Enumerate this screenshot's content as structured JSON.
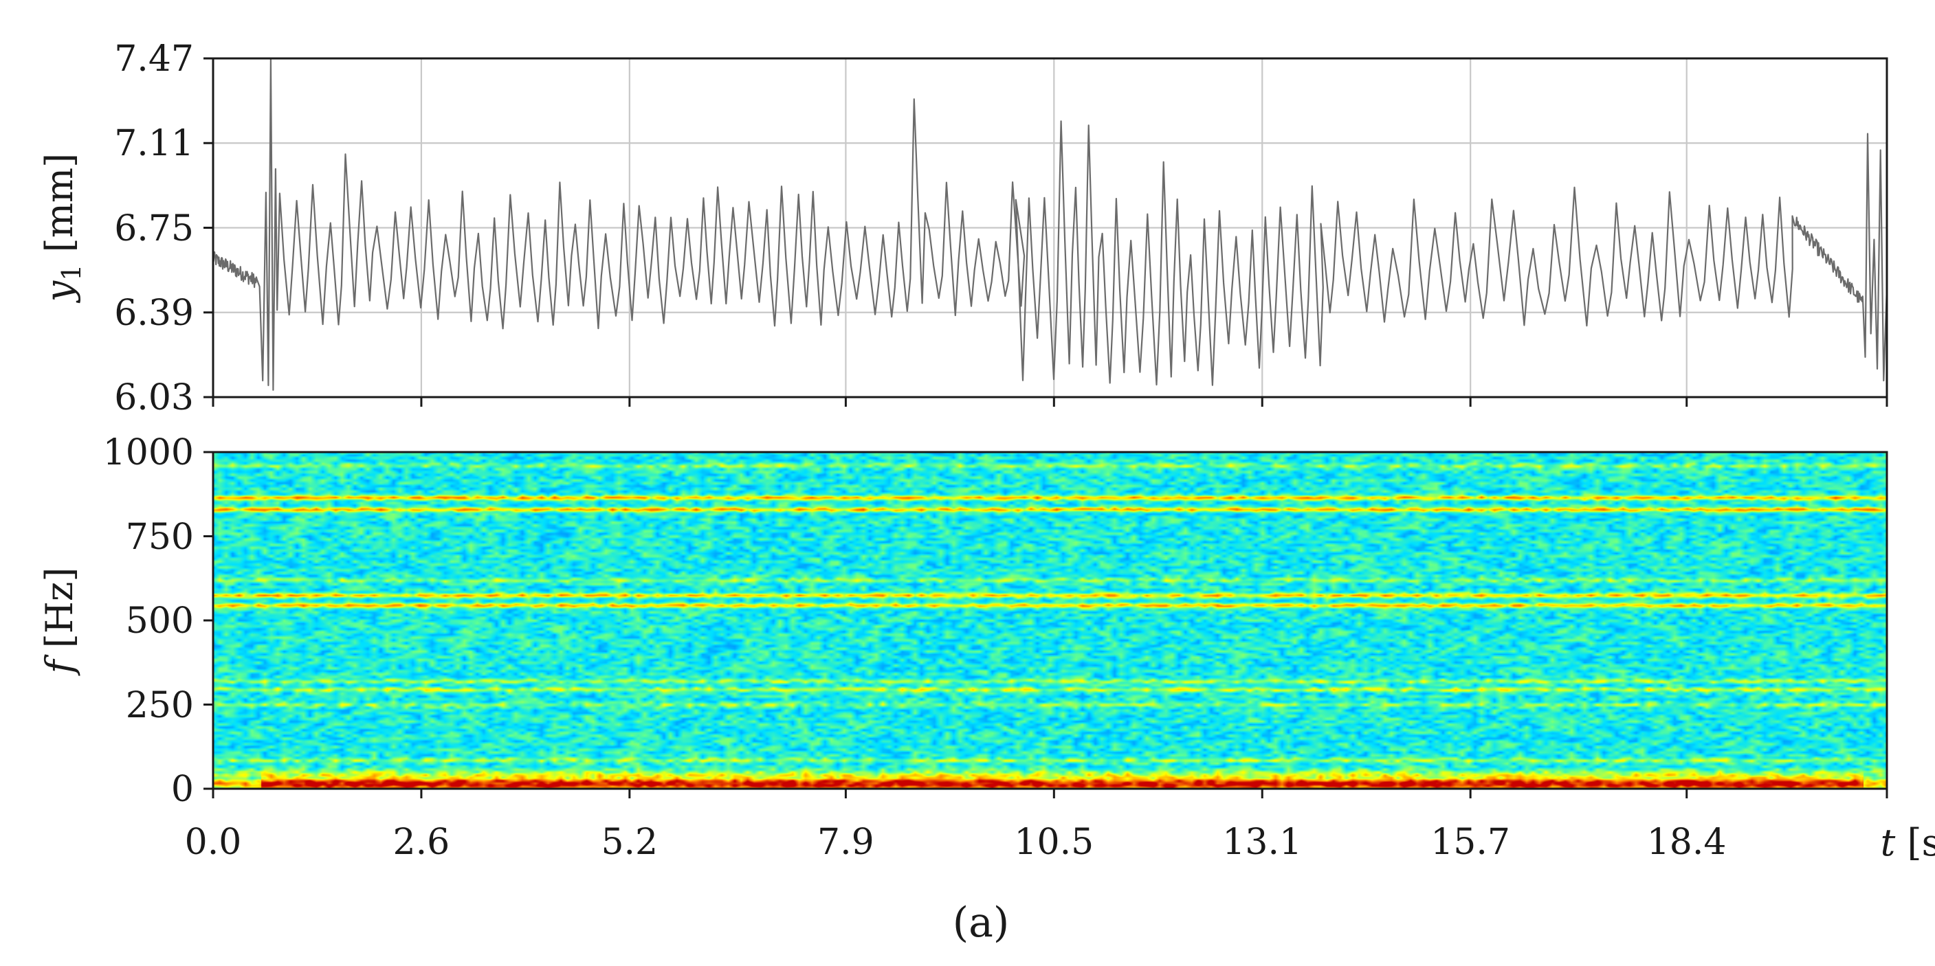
{
  "caption": "(a)",
  "chart_data": [
    {
      "type": "line",
      "panel": "top",
      "ylabel": "y₁ [mm]",
      "ylabel_parts": {
        "symbol": "y",
        "subscript": "1",
        "unit": " [mm]"
      },
      "xlim": [
        0.0,
        20.9
      ],
      "ylim": [
        6.03,
        7.47
      ],
      "yticks": [
        "6.03",
        "6.39",
        "6.75",
        "7.11",
        "7.47"
      ],
      "xtick_positions": [
        0.0,
        2.6,
        5.2,
        7.9,
        10.5,
        13.1,
        15.7,
        18.4,
        20.9
      ],
      "grid": true,
      "series": [
        {
          "color": "#6b6b6b",
          "signal_segments": [
            {
              "t": [
                0.0,
                0.55
              ],
              "level": 6.57,
              "amplitude": 0.05,
              "behavior": "slow decay"
            },
            {
              "t": [
                0.55,
                0.8
              ],
              "spike_max": 7.47,
              "spike_min": 6.06
            },
            {
              "t": [
                0.8,
                10.0
              ],
              "low": 6.3,
              "high": 6.95,
              "peaks_up_to": 7.3
            },
            {
              "t": [
                10.0,
                13.8
              ],
              "low": 6.06,
              "high": 7.0,
              "peaks_up_to": 7.22
            },
            {
              "t": [
                13.8,
                19.7
              ],
              "low": 6.33,
              "high": 6.9
            },
            {
              "t": [
                19.7,
                20.6
              ],
              "level": 6.5,
              "behavior": "decaying tail"
            },
            {
              "t": [
                20.6,
                20.9
              ],
              "spike_max": 7.15,
              "spike_min": 6.1
            }
          ]
        }
      ]
    },
    {
      "type": "heatmap",
      "panel": "bottom",
      "xlabel": "t [s]",
      "xlabel_parts": {
        "symbol": "t",
        "unit": " [s]"
      },
      "ylabel": "f [Hz]",
      "ylabel_parts": {
        "symbol": "f",
        "unit": " [Hz]"
      },
      "xlim": [
        0.0,
        20.9
      ],
      "ylim": [
        0,
        1000
      ],
      "xticks": [
        "0.0",
        "2.6",
        "5.2",
        "7.9",
        "10.5",
        "13.1",
        "15.7",
        "18.4"
      ],
      "yticks": [
        "0",
        "250",
        "500",
        "750",
        "1000"
      ],
      "colormap": "jet",
      "colormap_colors": [
        "#0000c8",
        "#0080ff",
        "#00e0ff",
        "#60ff90",
        "#ffff00",
        "#ff8000",
        "#c80000"
      ],
      "background_level": 0.38,
      "bands": [
        {
          "f": 15,
          "level": 1.0
        },
        {
          "f": 35,
          "level": 0.68
        },
        {
          "f": 85,
          "level": 0.55
        },
        {
          "f": 250,
          "level": 0.52
        },
        {
          "f": 295,
          "level": 0.58
        },
        {
          "f": 320,
          "level": 0.55
        },
        {
          "f": 545,
          "level": 0.72
        },
        {
          "f": 575,
          "level": 0.72
        },
        {
          "f": 620,
          "level": 0.52
        },
        {
          "f": 830,
          "level": 0.74
        },
        {
          "f": 865,
          "level": 0.74
        },
        {
          "f": 960,
          "level": 0.52
        }
      ]
    }
  ]
}
